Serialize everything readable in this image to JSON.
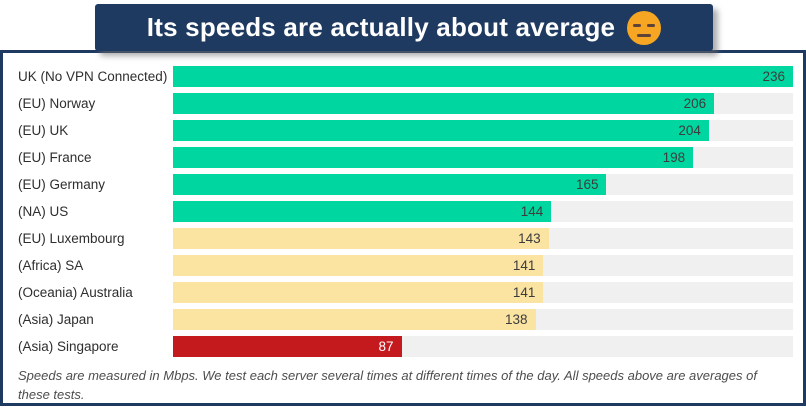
{
  "banner": {
    "title": "Its speeds are actually about average",
    "emoji_icon": "expressionless-face-emoji",
    "background": "#1f3a61",
    "text_color": "#ffffff"
  },
  "chart_data": {
    "type": "bar",
    "orientation": "horizontal",
    "title": "Its speeds are actually about average",
    "unit": "Mbps",
    "xlim": [
      0,
      236
    ],
    "grid": false,
    "legend": false,
    "categories": [
      "UK (No VPN Connected)",
      "(EU) Norway",
      "(EU) UK",
      "(EU) France",
      "(EU) Germany",
      "(NA) US",
      "(EU) Luxembourg",
      "(Africa) SA",
      "(Oceania) Australia",
      "(Asia) Japan",
      "(Asia) Singapore"
    ],
    "values": [
      236,
      206,
      204,
      198,
      165,
      144,
      143,
      141,
      141,
      138,
      87
    ],
    "tiers": [
      "fast",
      "fast",
      "fast",
      "fast",
      "fast",
      "fast",
      "medium",
      "medium",
      "medium",
      "medium",
      "slow"
    ],
    "tier_colors": {
      "fast": "#00d6a0",
      "medium": "#fbe3a2",
      "slow": "#c41a1d"
    },
    "value_label_colors": {
      "fast": "#3c3c3c",
      "medium": "#3c3c3c",
      "slow": "#ffffff"
    },
    "track_color": "#f0f0f0"
  },
  "footer": {
    "note": "Speeds are measured in Mbps. We test each server several times at different times of the day. All speeds above are averages of these tests."
  }
}
